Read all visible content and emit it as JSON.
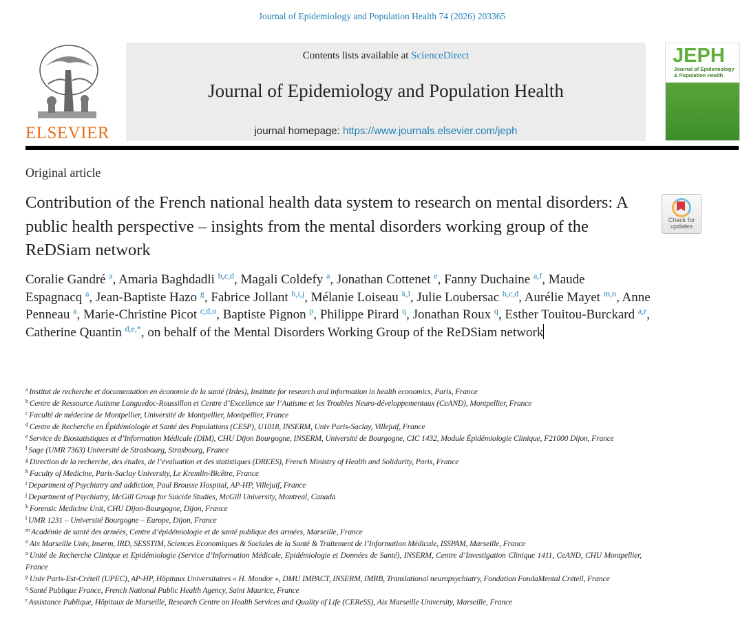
{
  "citation": "Journal of Epidemiology and Population Health 74 (2026) 203365",
  "publisher_logo": {
    "text": "ELSEVIER",
    "color": "#e9711c"
  },
  "masthead": {
    "contents_prefix": "Contents lists available at ",
    "contents_link": "ScienceDirect",
    "journal_title": "Journal of Epidemiology and Population Health",
    "homepage_prefix": "journal homepage: ",
    "homepage_link": "https://www.journals.elsevier.com/jeph"
  },
  "cover": {
    "abbrev": "JEPH",
    "line1": "Journal of Epidemiology",
    "line2": "& Population Health"
  },
  "article_type": "Original article",
  "title": "Contribution of the French national health data system to research on mental disorders: A public health perspective – insights from the mental disorders working group of the ReDSiam network",
  "check_updates": {
    "line1": "Check for",
    "line2": "updates"
  },
  "authors": [
    {
      "name": "Coralie Gandré",
      "aff": "a"
    },
    {
      "name": "Amaria Baghdadli",
      "aff": "b,c,d"
    },
    {
      "name": "Magali Coldefy",
      "aff": "a"
    },
    {
      "name": "Jonathan Cottenet",
      "aff": "e"
    },
    {
      "name": "Fanny Duchaine",
      "aff": "a,f"
    },
    {
      "name": "Maude Espagnacq",
      "aff": "a"
    },
    {
      "name": "Jean-Baptiste Hazo",
      "aff": "g"
    },
    {
      "name": "Fabrice Jollant",
      "aff": "h,i,j"
    },
    {
      "name": "Mélanie Loiseau",
      "aff": "k,l"
    },
    {
      "name": "Julie Loubersac",
      "aff": "b,c,d"
    },
    {
      "name": "Aurélie Mayet",
      "aff": "m,n"
    },
    {
      "name": "Anne Penneau",
      "aff": "a"
    },
    {
      "name": "Marie-Christine Picot",
      "aff": "c,d,o"
    },
    {
      "name": "Baptiste Pignon",
      "aff": "p"
    },
    {
      "name": "Philippe Pirard",
      "aff": "q"
    },
    {
      "name": "Jonathan Roux",
      "aff": "q"
    },
    {
      "name": "Esther Touitou-Burckard",
      "aff": "a,r"
    },
    {
      "name": "Catherine Quantin",
      "aff": "d,e,*"
    }
  ],
  "authors_suffix": ", on behalf of the Mental Disorders Working Group of the ReDSiam network",
  "affiliations": [
    {
      "id": "a",
      "text": "Institut de recherche et documentation en économie de la santé (Irdes), Institute for research and information in health economics, Paris, France"
    },
    {
      "id": "b",
      "text": "Centre de Ressource Autisme Languedoc-Roussillon et Centre d’Excellence sur l’Autisme et les Troubles Neuro-développementaux (CeAND), Montpellier, France"
    },
    {
      "id": "c",
      "text": "Faculté de médecine de Montpellier, Université de Montpellier, Montpellier, France"
    },
    {
      "id": "d",
      "text": "Centre de Recherche en Épidémiologie et Santé des Populations (CESP), U1018, INSERM, Univ Paris-Saclay, Villejuif, France"
    },
    {
      "id": "e",
      "text": "Service de Biostatistiques et d’Information Médicale (DIM), CHU Dijon Bourgogne, INSERM, Université de Bourgogne, CIC 1432, Module Épidémiologie Clinique, F21000 Dijon, France"
    },
    {
      "id": "f",
      "text": "Sage (UMR 7363) Université de Strasbourg, Strasbourg, France"
    },
    {
      "id": "g",
      "text": "Direction de la recherche, des études, de l’évaluation et des statistiques (DREES), French Ministry of Health and Solidarity, Paris, France"
    },
    {
      "id": "h",
      "text": "Faculty of Medicine, Paris-Saclay University, Le Kremlin-Bicêtre, France"
    },
    {
      "id": "i",
      "text": "Department of Psychiatry and addiction, Paul Brousse Hospital, AP-HP, Villejuif, France"
    },
    {
      "id": "j",
      "text": "Department of Psychiatry, McGill Group for Suicide Studies, McGill University, Montreal, Canada"
    },
    {
      "id": "k",
      "text": "Forensic Medicine Unit, CHU Dijon-Bourgogne, Dijon, France"
    },
    {
      "id": "l",
      "text": "UMR 1231 – Université Bourgogne – Europe, Dijon, France"
    },
    {
      "id": "m",
      "text": "Académie de santé des armées, Centre d’épidémiologie et de santé publique des armées, Marseille, France"
    },
    {
      "id": "n",
      "text": "Aix Marseille Univ, Inserm, IRD, SESSTIM, Sciences Economiques & Sociales de la Santé & Traitement de l’Information Médicale, ISSPAM, Marseille, France"
    },
    {
      "id": "o",
      "text": "Unité de Recherche Clinique et Epidémiologie (Service d’Information Médicale, Epidémiologie et Données de Santé), INSERM, Centre d’Investigation Clinique 1411, CeAND, CHU Montpellier, France"
    },
    {
      "id": "p",
      "text": "Univ Paris-Est-Créteil (UPEC), AP-HP, Hôpitaux Universitaires « H. Mondor », DMU IMPACT, INSERM, IMRB, Translational neuropsychiatry, Fondation FondaMental Créteil, France"
    },
    {
      "id": "q",
      "text": "Santé Publique France, French National Public Health Agency, Saint Maurice, France"
    },
    {
      "id": "r",
      "text": "Assistance Publique, Hôpitaux de Marseille, Research Centre on Health Services and Quality of Life (CEReSS), Aix Marseille University, Marseille, France"
    }
  ],
  "colors": {
    "link": "#1f7fb4",
    "elsevier_orange": "#e9711c",
    "masthead_bg": "#ececec"
  }
}
